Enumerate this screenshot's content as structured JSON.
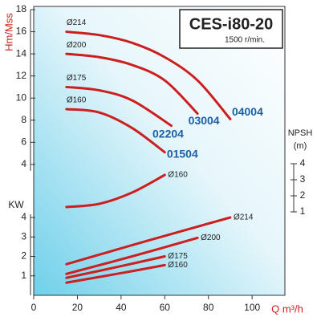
{
  "chart_data": {
    "type": "line",
    "title": "CES-i80-20",
    "subtitle": "1500 r/min.",
    "y_label": "Hm/Mss",
    "kw_label": "KW",
    "y2_label": "NPSH\n(m)",
    "x_label": "Q m³/h",
    "xlim": [
      0,
      115
    ],
    "xticks": [
      0,
      20,
      40,
      60,
      80,
      100
    ],
    "ylim": [
      0,
      18
    ],
    "yticks": [
      4,
      6,
      8,
      10,
      12,
      14,
      16,
      18
    ],
    "kwlim": [
      0,
      4
    ],
    "kwticks": [
      1,
      2,
      3,
      4
    ],
    "y2lim": [
      1,
      4
    ],
    "y2ticks": [
      1,
      2,
      3,
      4
    ],
    "curve_color": "#cc1f1f",
    "model_color": "#1a5fa8",
    "series": [
      {
        "name": "Ø214",
        "model": "04004",
        "axis": "y",
        "x": [
          15,
          30,
          45,
          60,
          75,
          90
        ],
        "values": [
          16,
          15.7,
          15,
          13.7,
          11.6,
          8.1
        ]
      },
      {
        "name": "Ø200",
        "model": "03004",
        "axis": "y",
        "x": [
          15,
          30,
          45,
          60,
          75
        ],
        "values": [
          14,
          13.7,
          13,
          11.6,
          8.6
        ]
      },
      {
        "name": "Ø175",
        "model": "02204",
        "axis": "y",
        "x": [
          15,
          30,
          45,
          63
        ],
        "values": [
          11,
          10.7,
          9.8,
          7.5
        ]
      },
      {
        "name": "Ø160",
        "model": "01504",
        "axis": "y",
        "x": [
          15,
          30,
          45,
          60
        ],
        "values": [
          9,
          8.7,
          7.3,
          5.1
        ]
      },
      {
        "name": "Ø160",
        "axis": "y2",
        "x": [
          15,
          30,
          45,
          60
        ],
        "values": [
          1.3,
          1.5,
          2.2,
          3.3
        ]
      },
      {
        "name": "Ø214",
        "axis": "kw",
        "x": [
          15,
          52,
          90
        ],
        "values": [
          1.6,
          2.8,
          4.0
        ]
      },
      {
        "name": "Ø200",
        "axis": "kw",
        "x": [
          15,
          45,
          75
        ],
        "values": [
          1.1,
          2.0,
          2.95
        ]
      },
      {
        "name": "Ø175",
        "axis": "kw",
        "x": [
          15,
          38,
          60
        ],
        "values": [
          0.9,
          1.45,
          2.0
        ]
      },
      {
        "name": "Ø160",
        "axis": "kw",
        "x": [
          15,
          38,
          60
        ],
        "values": [
          0.65,
          1.1,
          1.55
        ]
      }
    ]
  }
}
